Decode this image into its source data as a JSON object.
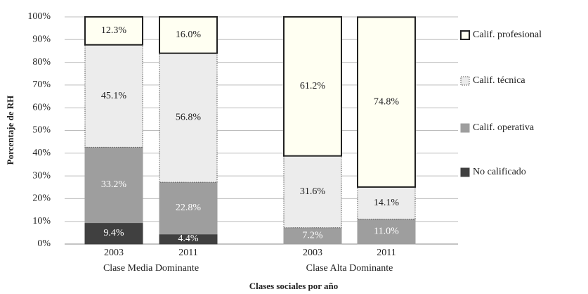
{
  "chart_data": {
    "type": "stacked_bar",
    "x_label": "Clases sociales por año",
    "y_label": "Porcentaje de RH",
    "categories": [
      "2003",
      "2011",
      "2003",
      "2011"
    ],
    "groups": [
      "Clase Media Dominante",
      "Clase Alta Dominante"
    ],
    "ylim": [
      0,
      100
    ],
    "yticks": [
      {
        "value": 0,
        "label": "0%"
      },
      {
        "value": 10,
        "label": "10%"
      },
      {
        "value": 20,
        "label": "20%"
      },
      {
        "value": 30,
        "label": "30%"
      },
      {
        "value": 40,
        "label": "40%"
      },
      {
        "value": 50,
        "label": "50%"
      },
      {
        "value": 60,
        "label": "60%"
      },
      {
        "value": 70,
        "label": "70%"
      },
      {
        "value": 80,
        "label": "80%"
      },
      {
        "value": 90,
        "label": "90%"
      },
      {
        "value": 100,
        "label": "100%"
      }
    ],
    "grid": true,
    "legend": "right",
    "series": [
      {
        "name": "No calificado",
        "color": "#404040",
        "edge_color": "#404040",
        "edge_style": "solid",
        "label_color": "#ffffff",
        "values": [
          9.4,
          4.4,
          null,
          null
        ],
        "value_labels": [
          "9.4%",
          "4.4%",
          null,
          null
        ]
      },
      {
        "name": "Calif. operativa",
        "color": "#9e9e9e",
        "edge_color": "#9e9e9e",
        "edge_style": "solid",
        "label_color": "#ffffff",
        "values": [
          33.2,
          22.8,
          7.2,
          11.0
        ],
        "value_labels": [
          "33.2%",
          "22.8%",
          "7.2%",
          "11.0%"
        ]
      },
      {
        "name": "Calif. técnica",
        "color": "#ececec",
        "edge_color": "#555555",
        "edge_style": "dotted",
        "label_color": "#222222",
        "values": [
          45.1,
          56.8,
          31.6,
          14.1
        ],
        "value_labels": [
          "45.1%",
          "56.8%",
          "31.6%",
          "14.1%"
        ]
      },
      {
        "name": "Calif. profesional",
        "color": "#fffff2",
        "edge_color": "#222222",
        "edge_style": "solid-thick",
        "label_color": "#222222",
        "values": [
          12.3,
          16.0,
          61.2,
          74.8
        ],
        "value_labels": [
          "12.3%",
          "16.0%",
          "61.2%",
          "74.8%"
        ]
      }
    ]
  }
}
